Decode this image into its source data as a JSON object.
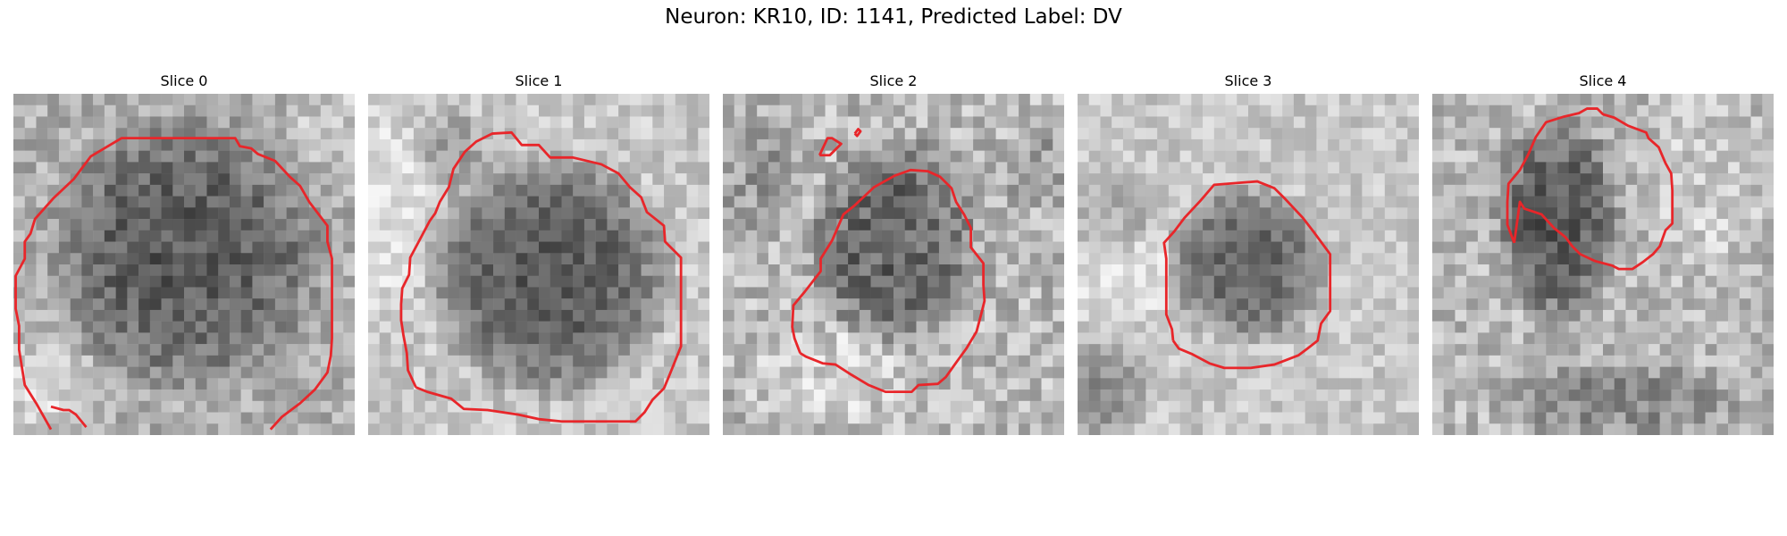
{
  "figure": {
    "title": "Neuron: KR10, ID: 1141, Predicted Label: DV",
    "panels": [
      {
        "title": "Slice 0"
      },
      {
        "title": "Slice 1"
      },
      {
        "title": "Slice 2"
      },
      {
        "title": "Slice 3"
      },
      {
        "title": "Slice 4"
      }
    ],
    "contour_color": "#e8262a",
    "colormap": "grayscale"
  }
}
